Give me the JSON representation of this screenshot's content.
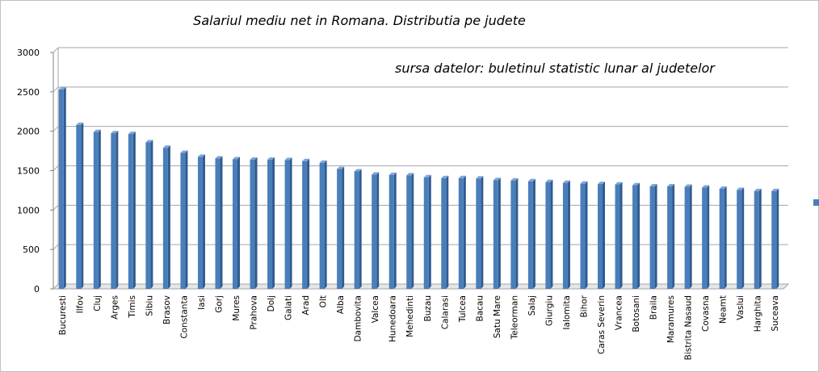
{
  "chart_data": {
    "type": "bar",
    "title": "Salariul mediu net in Romana. Distributia pe judete",
    "subtitle": "sursa datelor: buletinul statistic lunar al judetelor",
    "xlabel": "",
    "ylabel": "",
    "ylim": [
      0,
      3000
    ],
    "yticks": [
      "0",
      "500",
      "1000",
      "1500",
      "2000",
      "2500",
      "3000"
    ],
    "grid": true,
    "legend_position": "right",
    "bar_color": "#4a7ebb",
    "categories": [
      "Bucuresti",
      "Ilfov",
      "Cluj",
      "Arges",
      "Timis",
      "Sibiu",
      "Brasov",
      "Constanta",
      "Iasi",
      "Gorj",
      "Mures",
      "Prahova",
      "Dolj",
      "Galati",
      "Arad",
      "Olt",
      "Alba",
      "Dambovita",
      "Valcea",
      "Hunedoara",
      "Mehedinti",
      "Buzau",
      "Calarasi",
      "Tulcea",
      "Bacau",
      "Satu Mare",
      "Teleorman",
      "Salaj",
      "Giurgiu",
      "Ialomita",
      "Bihor",
      "Caras Severin",
      "Vrancea",
      "Botosani",
      "Braila",
      "Maramures",
      "Bistrita Nasaud",
      "Covasna",
      "Neamt",
      "Vaslui",
      "Harghita",
      "Suceava"
    ],
    "values": [
      2530,
      2080,
      1990,
      1975,
      1965,
      1860,
      1790,
      1725,
      1675,
      1655,
      1645,
      1640,
      1640,
      1635,
      1620,
      1600,
      1520,
      1490,
      1450,
      1445,
      1440,
      1415,
      1405,
      1405,
      1400,
      1380,
      1375,
      1365,
      1355,
      1345,
      1335,
      1330,
      1325,
      1315,
      1300,
      1300,
      1295,
      1285,
      1270,
      1255,
      1240,
      1240
    ]
  }
}
